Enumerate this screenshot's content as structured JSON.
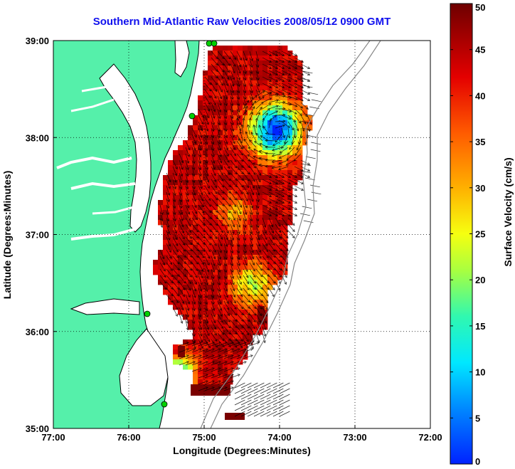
{
  "title": "Southern Mid-Atlantic Raw Velocities 2008/05/12 0900 GMT",
  "xaxis": {
    "label": "Longitude (Degrees:Minutes)",
    "ticks": [
      "77:00",
      "76:00",
      "75:00",
      "74:00",
      "73:00",
      "72:00"
    ]
  },
  "yaxis": {
    "label": "Latitude (Degrees:Minutes)",
    "ticks": [
      "39:00",
      "38:00",
      "37:00",
      "36:00",
      "35:00"
    ]
  },
  "colorbar": {
    "label": "Surface Velocity (cm/s)",
    "ticks": [
      "50",
      "45",
      "40",
      "35",
      "30",
      "25",
      "20",
      "15",
      "10",
      "5",
      "0"
    ],
    "min": 0,
    "max": 50
  },
  "colors": {
    "title": "#1010ee",
    "land": "#55f0aa",
    "water": "#ffffff",
    "max_velocity": "#7a0000",
    "min_velocity": "#0033ff"
  },
  "map_extent": {
    "lon": [
      -77,
      -72
    ],
    "lat": [
      35,
      39
    ]
  },
  "grid": "dotted",
  "features": {
    "low_velocity_eddy": {
      "lon": -74.05,
      "lat": 38.08,
      "speed_cm_s": 5
    },
    "south_low_velocity_patch": {
      "lon": -75.3,
      "lat": 35.6,
      "speed_cm_s": 12
    }
  }
}
